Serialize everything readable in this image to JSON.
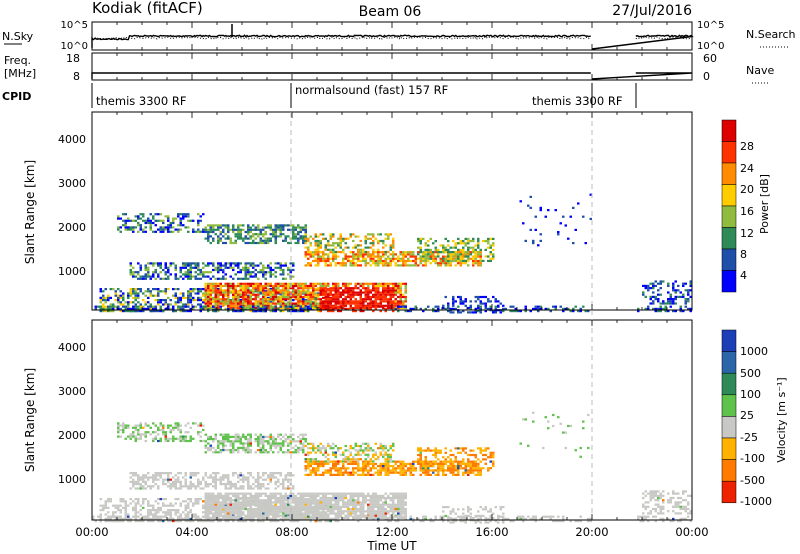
{
  "header": {
    "station": "Kodiak (fitACF)",
    "beam": "Beam 06",
    "date": "27/Jul/2016"
  },
  "top_panels": {
    "nsky_label": "N.Sky",
    "nsky_ticks": [
      "10^5",
      "10^0"
    ],
    "nsearch_label": "N.Search",
    "nsearch_ticks": [
      "10^5",
      "10^0"
    ],
    "freq_label": "Freq.",
    "freq_unit": "[MHz]",
    "freq_ticks": [
      "18",
      "8"
    ],
    "nave_label": "Nave",
    "nave_ticks": [
      "60",
      "0"
    ],
    "cpid_label": "CPID",
    "cpid_segments": [
      "themis 3300 RF",
      "normalsound (fast) 157 RF",
      "themis 3300 RF"
    ]
  },
  "power_panel": {
    "ylabel": "Slant Range [km]",
    "yticks": [
      "1000",
      "2000",
      "3000",
      "4000"
    ],
    "colorbar_label": "Power [dB]",
    "colorbar_ticks": [
      "4",
      "8",
      "12",
      "16",
      "20",
      "24",
      "28"
    ],
    "colors": [
      "#0000ff",
      "#1f4fa8",
      "#2e8b57",
      "#8fbc3f",
      "#ffcc00",
      "#ff8c00",
      "#ff3300",
      "#dd0000"
    ]
  },
  "velocity_panel": {
    "ylabel": "Slant Range [km]",
    "yticks": [
      "1000",
      "2000",
      "3000",
      "4000"
    ],
    "colorbar_label": "Velocity [m s⁻¹]",
    "colorbar_ticks": [
      "1000",
      "500",
      "100",
      "25",
      "-25",
      "-100",
      "-500",
      "-1000"
    ],
    "colors": [
      "#1c3fb8",
      "#2a66a8",
      "#2e8b57",
      "#5fc24a",
      "#c8c8c4",
      "#ffb300",
      "#ff7a00",
      "#ee2200"
    ]
  },
  "xaxis": {
    "label": "Time UT",
    "ticks": [
      "00:00",
      "04:00",
      "08:00",
      "12:00",
      "16:00",
      "20:00",
      "00:00"
    ]
  },
  "chart_data": {
    "type": "heatmap",
    "title": "Kodiak (fitACF)",
    "xlabel": "Time UT",
    "ylabel": "Slant Range [km]",
    "xlim_hours": [
      0,
      24
    ],
    "ylim_km": [
      180,
      4600
    ],
    "data_gap_hours": [
      20,
      21.75
    ],
    "cpid_changes_hours": [
      8,
      20
    ],
    "series": [
      {
        "name": "Power [dB]",
        "color_scale": [
          4,
          8,
          12,
          16,
          20,
          24,
          28
        ]
      },
      {
        "name": "Velocity [m s-1]",
        "color_scale": [
          1000,
          500,
          100,
          25,
          -25,
          -100,
          -500,
          -1000
        ]
      }
    ],
    "freq_mhz_range": [
      8,
      18
    ],
    "nave_range": [
      0,
      60
    ]
  }
}
